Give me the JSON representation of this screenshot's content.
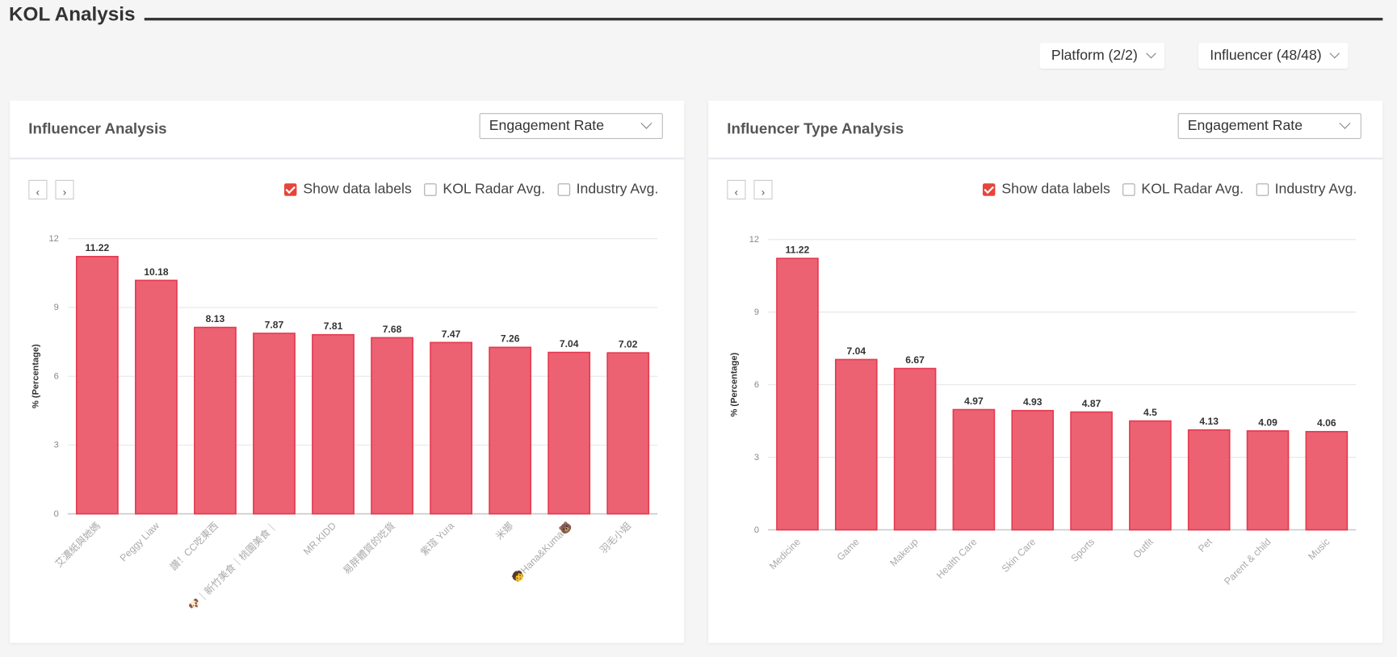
{
  "header": {
    "title": "KOL Analysis"
  },
  "filters": [
    "Platform (2/2)",
    "Influencer (48/48)"
  ],
  "chart_data": [
    {
      "type": "bar",
      "title": "Influencer Analysis",
      "metric": "Engagement Rate",
      "options": [
        {
          "label": "Show data labels",
          "checked": true
        },
        {
          "label": "KOL Radar Avg.",
          "checked": false
        },
        {
          "label": "Industry Avg.",
          "checked": false
        }
      ],
      "y_label": "% (Percentage)",
      "categories": [
        "艾濃紙與她媽",
        "Peggy Liaw",
        "讚！CC吃東西",
        "🐶｜新竹美食｜桃園美食｜",
        "MR.KIDD",
        "易胖體質的吃貨",
        "紫瑄 Yura",
        "米娜",
        "🧒Hana&Kuma🐻",
        "羽毛小姐"
      ],
      "values": [
        11.22,
        10.18,
        8.13,
        7.87,
        7.81,
        7.68,
        7.47,
        7.26,
        7.04,
        7.02
      ],
      "color": "#ec5a6b",
      "ylim": [
        0,
        12
      ],
      "yticks": [
        0,
        3,
        6,
        9,
        12
      ],
      "grid": true
    },
    {
      "type": "bar",
      "title": "Influencer Type Analysis",
      "metric": "Engagement Rate",
      "options": [
        {
          "label": "Show data labels",
          "checked": true
        },
        {
          "label": "KOL Radar Avg.",
          "checked": false
        },
        {
          "label": "Industry Avg.",
          "checked": false
        }
      ],
      "y_label": "% (Percentage)",
      "categories": [
        "Medicine",
        "Game",
        "Makeup",
        "Health Care",
        "Skin Care",
        "Sports",
        "Outfit",
        "Pet",
        "Parent & child",
        "Music"
      ],
      "values": [
        11.22,
        7.04,
        6.67,
        4.97,
        4.93,
        4.87,
        4.5,
        4.13,
        4.09,
        4.06
      ],
      "color": "#ec5a6b",
      "ylim": [
        0,
        12
      ],
      "yticks": [
        0,
        3,
        6,
        9,
        12
      ],
      "grid": true
    }
  ]
}
